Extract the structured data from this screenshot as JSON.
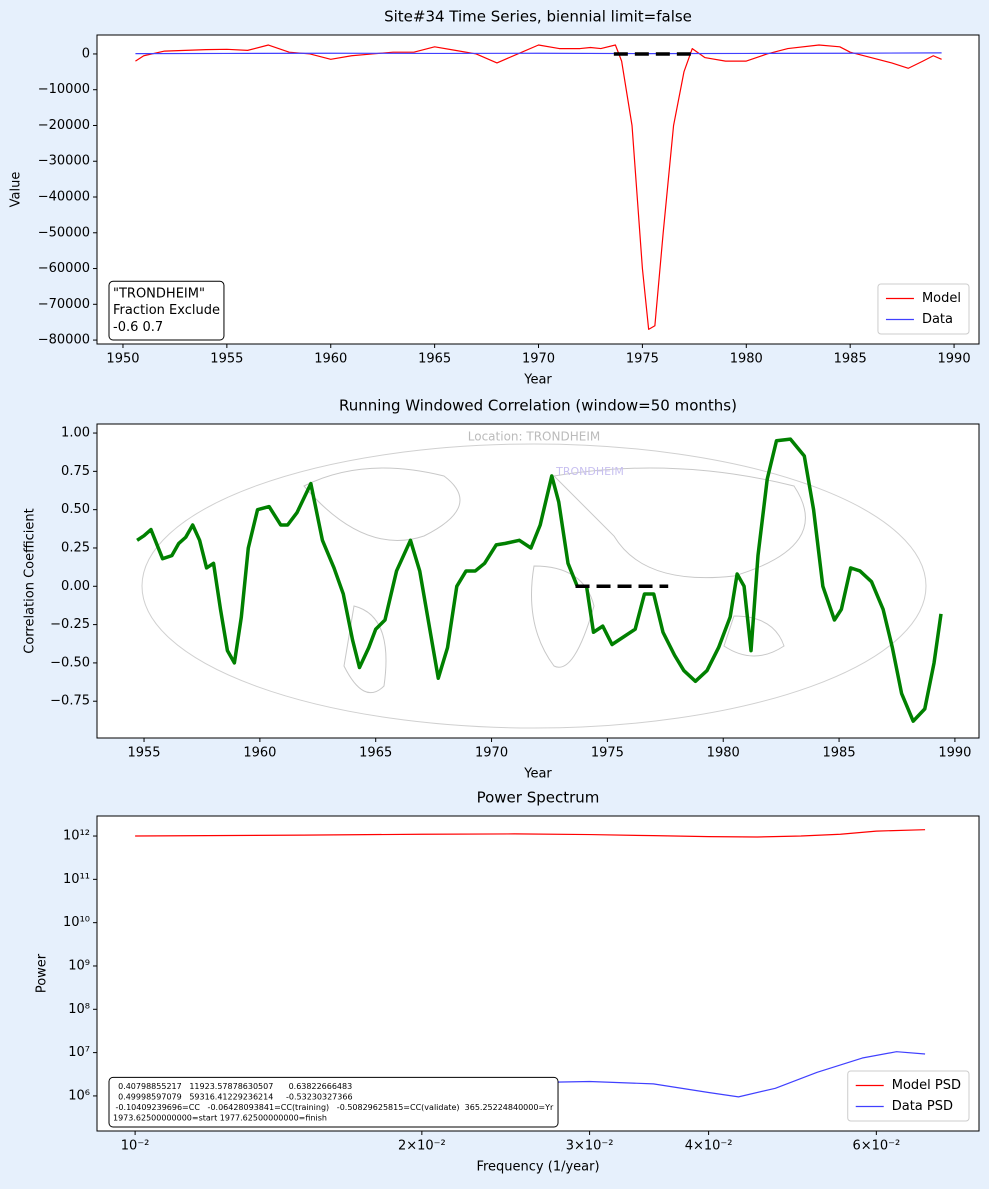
{
  "chart_data": [
    {
      "type": "line",
      "title": "Site#34 Time Series, biennial limit=false",
      "xlabel": "Year",
      "ylabel": "Value",
      "xlim": [
        1948.75,
        1991.2
      ],
      "ylim": [
        -81100,
        5300
      ],
      "xticks": [
        1950,
        1955,
        1960,
        1965,
        1970,
        1975,
        1980,
        1985,
        1990
      ],
      "yticks": [
        {
          "value": -80000,
          "label": "−80000"
        },
        {
          "value": -70000,
          "label": "−70000"
        },
        {
          "value": -60000,
          "label": "−60000"
        },
        {
          "value": -50000,
          "label": "−50000"
        },
        {
          "value": -40000,
          "label": "−40000"
        },
        {
          "value": -30000,
          "label": "−30000"
        },
        {
          "value": -20000,
          "label": "−20000"
        },
        {
          "value": -10000,
          "label": "−10000"
        },
        0
      ],
      "series": [
        {
          "name": "Model",
          "color": "#ff0000",
          "x": [
            1950.6,
            1951.0,
            1952.0,
            1953.0,
            1954.0,
            1955.0,
            1956.0,
            1957.0,
            1958.0,
            1959.0,
            1960.0,
            1961.0,
            1962.0,
            1963.0,
            1964.0,
            1965.0,
            1966.0,
            1967.0,
            1968.0,
            1969.0,
            1970.0,
            1971.0,
            1972.0,
            1972.5,
            1973.0,
            1973.7,
            1974.0,
            1974.5,
            1975.0,
            1975.3,
            1975.6,
            1976.0,
            1976.5,
            1977.0,
            1977.4,
            1978.0,
            1979.0,
            1980.0,
            1981.0,
            1982.0,
            1983.5,
            1984.5,
            1985.0,
            1986.0,
            1987.0,
            1987.8,
            1988.5,
            1989.0,
            1989.4
          ],
          "values": [
            -2000,
            -500,
            800,
            1000,
            1200,
            1300,
            1000,
            2500,
            500,
            0,
            -1500,
            -500,
            0,
            500,
            500,
            2000,
            1000,
            0,
            -2500,
            0,
            2500,
            1500,
            1500,
            1800,
            1500,
            2500,
            -2000,
            -20000,
            -60000,
            -77000,
            -76000,
            -50000,
            -20000,
            -5000,
            1500,
            -1000,
            -2000,
            -2000,
            0,
            1500,
            2500,
            2000,
            500,
            -1000,
            -2500,
            -4000,
            -2000,
            -500,
            -1500
          ]
        },
        {
          "name": "Data",
          "color": "#4040ff",
          "x": [
            1950.6,
            1955.0,
            1960.0,
            1965.0,
            1970.0,
            1975.0,
            1980.0,
            1985.0,
            1989.4
          ],
          "values": [
            100,
            150,
            200,
            150,
            200,
            100,
            150,
            200,
            300
          ]
        }
      ],
      "reference": {
        "x": [
          1973.625,
          1977.625
        ],
        "y": 0
      },
      "annotation": {
        "lines": [
          "\"TRONDHEIM\"",
          "Fraction Exclude",
          "-0.6 0.7"
        ]
      },
      "legend": "lower right"
    },
    {
      "type": "line",
      "title": "Running Windowed Correlation (window=50 months)",
      "xlabel": "Year",
      "ylabel": "Correlation Coefficient",
      "xlim": [
        1952.97,
        1991.04
      ],
      "ylim": [
        -0.99,
        1.059
      ],
      "xticks": [
        1955,
        1960,
        1965,
        1970,
        1975,
        1980,
        1985,
        1990
      ],
      "yticks": [
        {
          "value": -0.75,
          "label": "−0.75"
        },
        {
          "value": -0.5,
          "label": "−0.50"
        },
        {
          "value": -0.25,
          "label": "−0.25"
        },
        {
          "value": 0,
          "label": "0.00"
        },
        {
          "value": 0.25,
          "label": "0.25"
        },
        {
          "value": 0.5,
          "label": "0.50"
        },
        {
          "value": 0.75,
          "label": "0.75"
        },
        {
          "value": 1,
          "label": "1.00"
        }
      ],
      "series": [
        {
          "color": "#008000",
          "x": [
            1954.7,
            1955.0,
            1955.3,
            1955.8,
            1956.2,
            1956.5,
            1956.8,
            1957.1,
            1957.4,
            1957.7,
            1958.0,
            1958.3,
            1958.6,
            1958.9,
            1959.2,
            1959.5,
            1959.9,
            1960.4,
            1960.9,
            1961.2,
            1961.6,
            1962.2,
            1962.7,
            1963.2,
            1963.6,
            1964.0,
            1964.3,
            1964.7,
            1965.0,
            1965.4,
            1965.9,
            1966.5,
            1966.9,
            1967.3,
            1967.7,
            1968.1,
            1968.5,
            1968.9,
            1969.3,
            1969.7,
            1970.2,
            1970.6,
            1971.2,
            1971.7,
            1972.1,
            1972.6,
            1972.9,
            1973.3,
            1973.7,
            1974.1,
            1974.4,
            1974.8,
            1975.2,
            1975.7,
            1976.2,
            1976.6,
            1977.0,
            1977.4,
            1977.9,
            1978.3,
            1978.8,
            1979.3,
            1979.8,
            1980.3,
            1980.6,
            1980.9,
            1981.2,
            1981.5,
            1981.9,
            1982.3,
            1982.9,
            1983.5,
            1983.9,
            1984.3,
            1984.8,
            1985.1,
            1985.5,
            1985.9,
            1986.4,
            1986.9,
            1987.3,
            1987.7,
            1988.2,
            1988.7,
            1989.1,
            1989.4
          ],
          "values": [
            0.3,
            0.33,
            0.37,
            0.18,
            0.2,
            0.28,
            0.32,
            0.4,
            0.3,
            0.12,
            0.15,
            -0.15,
            -0.42,
            -0.5,
            -0.2,
            0.25,
            0.5,
            0.52,
            0.4,
            0.4,
            0.48,
            0.67,
            0.3,
            0.12,
            -0.05,
            -0.35,
            -0.53,
            -0.4,
            -0.28,
            -0.22,
            0.1,
            0.3,
            0.1,
            -0.25,
            -0.6,
            -0.4,
            0.0,
            0.1,
            0.1,
            0.15,
            0.27,
            0.28,
            0.3,
            0.25,
            0.4,
            0.72,
            0.55,
            0.15,
            0.0,
            0.0,
            -0.3,
            -0.26,
            -0.38,
            -0.33,
            -0.28,
            -0.05,
            -0.05,
            -0.3,
            -0.45,
            -0.55,
            -0.62,
            -0.55,
            -0.4,
            -0.2,
            0.08,
            0.0,
            -0.42,
            0.2,
            0.7,
            0.95,
            0.96,
            0.85,
            0.5,
            0.0,
            -0.22,
            -0.15,
            0.12,
            0.1,
            0.03,
            -0.15,
            -0.4,
            -0.7,
            -0.88,
            -0.8,
            -0.5,
            -0.18
          ]
        }
      ],
      "reference": {
        "x": [
          1973.625,
          1977.625
        ],
        "y": 0
      },
      "map": {
        "title": "Location: TRONDHEIM",
        "marker": "TRONDHEIM"
      }
    },
    {
      "type": "line",
      "title": "Power Spectrum",
      "xlabel": "Frequency (1/year)",
      "ylabel": "Power",
      "xscale": "log",
      "yscale": "log",
      "xlim": [
        0.00912,
        0.0769
      ],
      "ylim": [
        155000,
        2900000000000
      ],
      "xticks": [
        {
          "value": 0.01,
          "label": "10⁻²"
        },
        {
          "value": 0.02,
          "label": "2×10⁻²"
        },
        {
          "value": 0.03,
          "label": "3×10⁻²"
        },
        {
          "value": 0.04,
          "label": "4×10⁻²"
        },
        {
          "value": 0.06,
          "label": "6×10⁻²"
        }
      ],
      "yticks": [
        {
          "value": 1000000.0,
          "label": "10⁶"
        },
        {
          "value": 10000000.0,
          "label": "10⁷"
        },
        {
          "value": 100000000.0,
          "label": "10⁸"
        },
        {
          "value": 1000000000.0,
          "label": "10⁹"
        },
        {
          "value": 10000000000.0,
          "label": "10¹⁰"
        },
        {
          "value": 100000000000.0,
          "label": "10¹¹"
        },
        {
          "value": 1000000000000.0,
          "label": "10¹²"
        }
      ],
      "series": [
        {
          "name": "Model PSD",
          "color": "#ff0000",
          "x": [
            0.01,
            0.015,
            0.02,
            0.025,
            0.03,
            0.035,
            0.04,
            0.045,
            0.05,
            0.055,
            0.06,
            0.0675
          ],
          "values": [
            1000000000000.0,
            1050000000000.0,
            1100000000000.0,
            1120000000000.0,
            1080000000000.0,
            1020000000000.0,
            970000000000.0,
            950000000000.0,
            1000000000000.0,
            1100000000000.0,
            1300000000000.0,
            1400000000000.0
          ]
        },
        {
          "name": "Data PSD",
          "color": "#4040ff",
          "x": [
            0.01,
            0.012,
            0.015,
            0.02,
            0.025,
            0.03,
            0.035,
            0.04,
            0.043,
            0.047,
            0.052,
            0.058,
            0.063,
            0.0675
          ],
          "values": [
            600000,
            750000,
            1000000,
            1600000,
            2000000,
            2150000,
            1900000,
            1200000,
            950000,
            1500000,
            3500000,
            7500000,
            10500000,
            9300000
          ]
        }
      ],
      "annotation": {
        "lines": [
          "  0.40798855217   11923.57878630507      0.63822666483",
          "  0.49998597079   59316.41229236214     -0.53230327366",
          " -0.10409239696=CC   -0.06428093841=CC(training)   -0.50829625815=CC(validate)  365.25224840000=Yr",
          "1973.62500000000=start 1977.62500000000=finish"
        ]
      },
      "legend": "lower right"
    }
  ]
}
